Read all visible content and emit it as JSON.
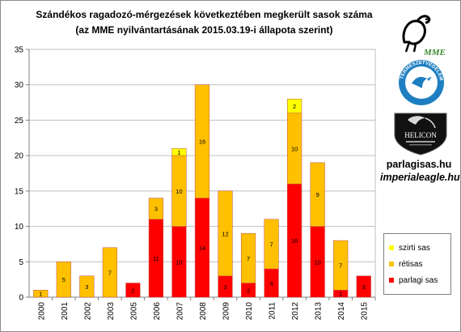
{
  "title": {
    "line1": "Szándékos ragadozó-mérgezések következtében megkerült sasok száma",
    "line2": "(az MME nyilvántartásának 2015.03.19-i  állapota szerint)"
  },
  "logos": {
    "mme_text": "MME",
    "tve_text": "TERMÉSZETVÉDELEM",
    "helicon_text": "HELICON"
  },
  "links": {
    "site1": "parlagisas.hu",
    "site2": "imperialeagle.hu"
  },
  "colors": {
    "parlagi": "#ff0000",
    "retisas": "#ffc000",
    "szirti": "#ffff00"
  },
  "chart_data": {
    "type": "bar",
    "stacked": true,
    "title": "Szándékos ragadozó-mérgezések következtében megkerült sasok száma",
    "subtitle": "(az MME nyilvántartásának 2015.03.19-i  állapota szerint)",
    "categories": [
      "2000",
      "2001",
      "2002",
      "2003",
      "2005",
      "2006",
      "2007",
      "2008",
      "2009",
      "2010",
      "2011",
      "2012",
      "2013",
      "2014",
      "2015"
    ],
    "series": [
      {
        "name": "parlagi sas",
        "color": "#ff0000",
        "values": [
          0,
          0,
          0,
          0,
          2,
          11,
          10,
          14,
          3,
          2,
          4,
          16,
          10,
          1,
          3
        ]
      },
      {
        "name": "rétisas",
        "color": "#ffc000",
        "values": [
          1,
          5,
          3,
          7,
          0,
          3,
          10,
          16,
          12,
          7,
          7,
          10,
          9,
          7,
          0
        ]
      },
      {
        "name": "szirti sas",
        "color": "#ffff00",
        "values": [
          0,
          0,
          0,
          0,
          0,
          0,
          1,
          0,
          0,
          0,
          0,
          2,
          0,
          0,
          0
        ]
      }
    ],
    "ylim": [
      0,
      35
    ],
    "yticks": [
      0,
      5,
      10,
      15,
      20,
      25,
      30,
      35
    ],
    "grid": true,
    "legend": "right",
    "legend_order": [
      "szirti sas",
      "rétisas",
      "parlagi sas"
    ]
  }
}
